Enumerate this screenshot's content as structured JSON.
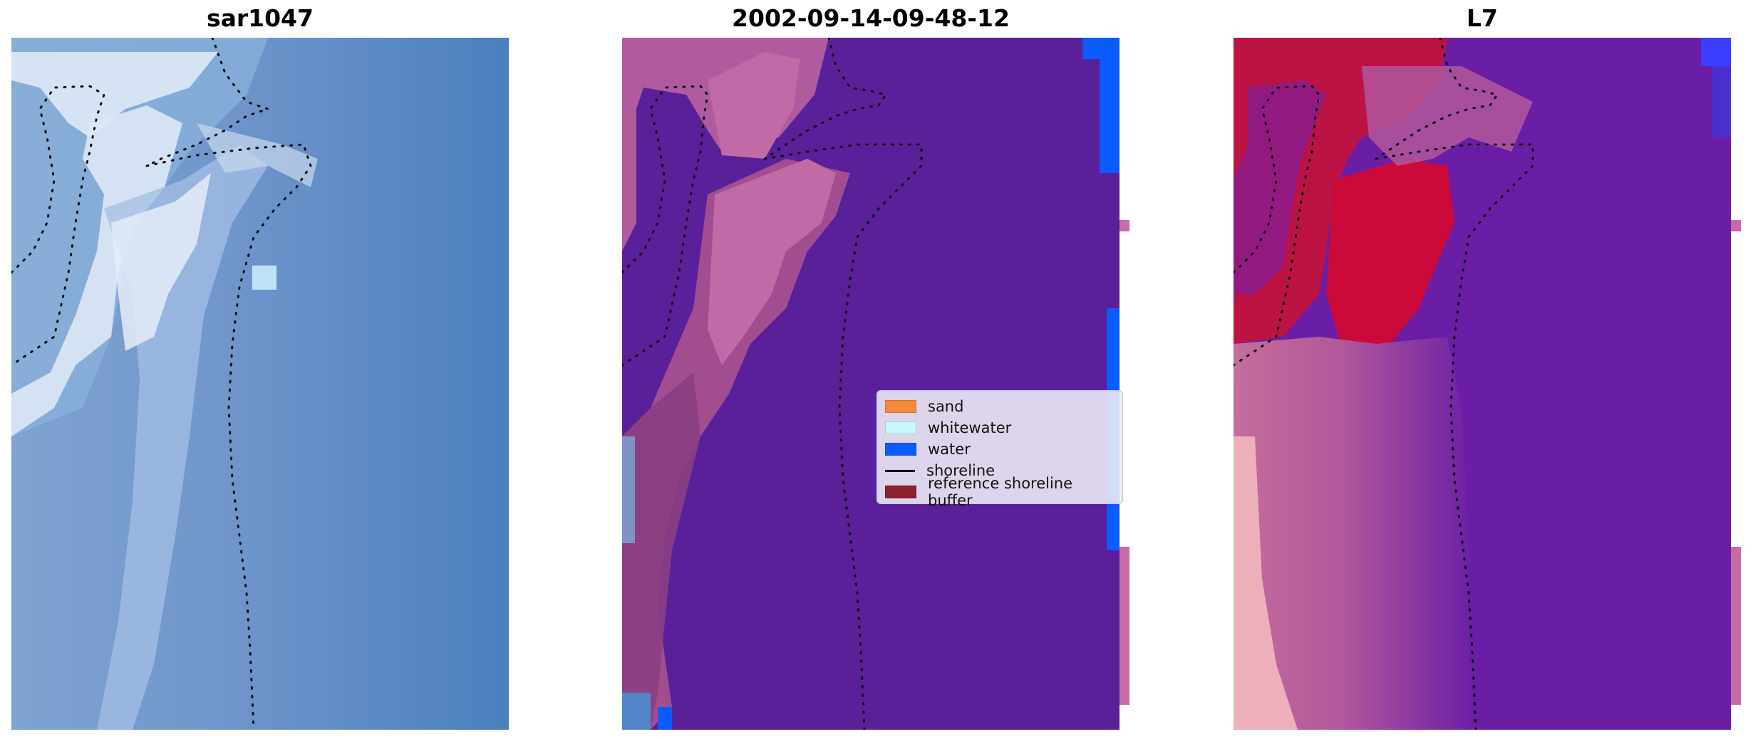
{
  "panels": [
    {
      "id": "rgb",
      "title": "sar1047"
    },
    {
      "id": "classified",
      "title": "2002-09-14-09-48-12"
    },
    {
      "id": "index",
      "title": "L7"
    }
  ],
  "legend": {
    "items": [
      {
        "label": "sand",
        "color": "#f58a3a"
      },
      {
        "label": "whitewater",
        "color": "#c8f7f7"
      },
      {
        "label": "water",
        "color": "#0a5cff"
      },
      {
        "label": "shoreline",
        "color": "#000000",
        "kind": "line"
      },
      {
        "label": "reference shoreline buffer",
        "color": "#8b2230"
      }
    ]
  },
  "colors": {
    "rgb_base": "#5a87c0",
    "rgb_highlight": "#c9d8ee",
    "class_background": "#5a209a",
    "class_buffer": "#b9629f",
    "class_water": "#0a5cff",
    "index_background": "#6a1ea6",
    "index_high": "#c4123a",
    "index_mid": "#c56d9c",
    "index_low": "#f2b8bf"
  }
}
